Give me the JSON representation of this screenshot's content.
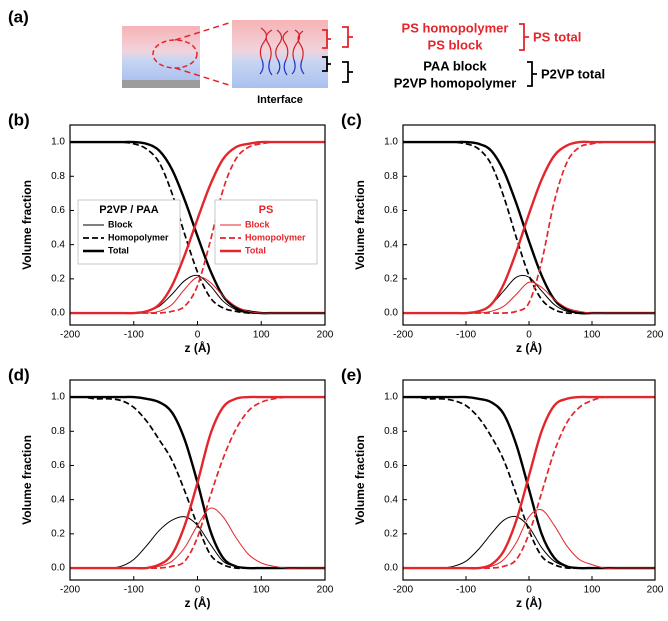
{
  "panel_a": {
    "label": "(a)",
    "labels": [
      "PS homopolymer",
      "PS block",
      "PAA block",
      "P2VP homopolymer"
    ],
    "totals": [
      "PS total",
      "P2VP total"
    ],
    "caption": "Interface"
  },
  "chart_data": [
    {
      "type": "line",
      "panel": "(b)",
      "xlabel": "z  (Å)",
      "ylabel": "Volume fraction",
      "legend_titles": [
        "P2VP / PAA",
        "PS"
      ],
      "x": [
        -200,
        -180,
        -160,
        -140,
        -120,
        -100,
        -80,
        -60,
        -40,
        -20,
        0,
        20,
        40,
        60,
        80,
        100,
        120,
        140,
        160,
        180,
        200
      ],
      "xlim": [
        -200,
        200
      ],
      "xticks": [
        -200,
        -100,
        0,
        100,
        200
      ],
      "ylim": [
        -0.07,
        1.1
      ],
      "yticks": [
        {
          "value": 0,
          "label": "0.0"
        },
        0.2,
        0.4,
        0.6,
        0.8,
        {
          "value": 1,
          "label": "1.0"
        }
      ],
      "series": [
        {
          "name": "Block",
          "color": "#000000",
          "line": "thin",
          "values": [
            0,
            0,
            0,
            0,
            0,
            0,
            0.01,
            0.04,
            0.11,
            0.19,
            0.22,
            0.16,
            0.07,
            0.02,
            0,
            0,
            0,
            0,
            0,
            0,
            0
          ]
        },
        {
          "name": "Homopolymer",
          "color": "#000000",
          "line": "dashed",
          "values": [
            1,
            1,
            1,
            1,
            1,
            0.99,
            0.96,
            0.88,
            0.7,
            0.46,
            0.24,
            0.09,
            0.03,
            0.01,
            0,
            0,
            0,
            0,
            0,
            0,
            0
          ]
        },
        {
          "name": "Total",
          "color": "#000000",
          "line": "thick",
          "values": [
            1,
            1,
            1,
            1,
            1,
            1,
            0.99,
            0.95,
            0.84,
            0.66,
            0.45,
            0.25,
            0.1,
            0.03,
            0.01,
            0,
            0,
            0,
            0,
            0,
            0
          ]
        },
        {
          "name": "Block",
          "color": "#e3262b",
          "line": "thin",
          "values": [
            0,
            0,
            0,
            0,
            0,
            0,
            0,
            0.01,
            0.05,
            0.14,
            0.21,
            0.18,
            0.1,
            0.04,
            0.01,
            0,
            0,
            0,
            0,
            0,
            0
          ]
        },
        {
          "name": "Homopolymer",
          "color": "#e3262b",
          "line": "dashed",
          "values": [
            0,
            0,
            0,
            0,
            0,
            0,
            0,
            0,
            0.01,
            0.04,
            0.16,
            0.42,
            0.72,
            0.9,
            0.97,
            0.99,
            1,
            1,
            1,
            1,
            1
          ]
        },
        {
          "name": "Total",
          "color": "#e3262b",
          "line": "thick",
          "values": [
            0,
            0,
            0,
            0,
            0,
            0,
            0.01,
            0.05,
            0.16,
            0.34,
            0.55,
            0.75,
            0.9,
            0.97,
            0.99,
            1,
            1,
            1,
            1,
            1,
            1
          ]
        }
      ]
    },
    {
      "type": "line",
      "panel": "(c)",
      "xlabel": "z  (Å)",
      "ylabel": "Volume fraction",
      "x": [
        -200,
        -180,
        -160,
        -140,
        -120,
        -100,
        -80,
        -60,
        -40,
        -20,
        0,
        20,
        40,
        60,
        80,
        100,
        120,
        140,
        160,
        180,
        200
      ],
      "xlim": [
        -200,
        200
      ],
      "xticks": [
        -200,
        -100,
        0,
        100,
        200
      ],
      "ylim": [
        -0.07,
        1.1
      ],
      "yticks": [
        {
          "value": 0,
          "label": "0.0"
        },
        0.2,
        0.4,
        0.6,
        0.8,
        {
          "value": 1,
          "label": "1.0"
        }
      ],
      "series": [
        {
          "color": "#000000",
          "line": "thin",
          "values": [
            0,
            0,
            0,
            0,
            0,
            0,
            0.01,
            0.05,
            0.13,
            0.21,
            0.21,
            0.13,
            0.05,
            0.01,
            0,
            0,
            0,
            0,
            0,
            0,
            0
          ]
        },
        {
          "color": "#000000",
          "line": "dashed",
          "values": [
            1,
            1,
            1,
            1,
            1,
            0.99,
            0.96,
            0.87,
            0.68,
            0.44,
            0.22,
            0.08,
            0.02,
            0,
            0,
            0,
            0,
            0,
            0,
            0,
            0
          ]
        },
        {
          "color": "#000000",
          "line": "thick",
          "values": [
            1,
            1,
            1,
            1,
            1,
            1,
            0.99,
            0.95,
            0.83,
            0.64,
            0.42,
            0.22,
            0.08,
            0.02,
            0,
            0,
            0,
            0,
            0,
            0,
            0
          ]
        },
        {
          "color": "#e3262b",
          "line": "thin",
          "values": [
            0,
            0,
            0,
            0,
            0,
            0,
            0,
            0.01,
            0.04,
            0.11,
            0.18,
            0.15,
            0.08,
            0.03,
            0.01,
            0,
            0,
            0,
            0,
            0,
            0
          ]
        },
        {
          "color": "#e3262b",
          "line": "dashed",
          "values": [
            0,
            0,
            0,
            0,
            0,
            0,
            0,
            0,
            0,
            0.01,
            0.06,
            0.3,
            0.65,
            0.88,
            0.97,
            0.99,
            1,
            1,
            1,
            1,
            1
          ]
        },
        {
          "color": "#e3262b",
          "line": "thick",
          "values": [
            0,
            0,
            0,
            0,
            0,
            0,
            0.01,
            0.05,
            0.17,
            0.36,
            0.58,
            0.78,
            0.92,
            0.98,
            1,
            1,
            1,
            1,
            1,
            1,
            1
          ]
        }
      ]
    },
    {
      "type": "line",
      "panel": "(d)",
      "xlabel": "z  (Å)",
      "ylabel": "Volume fraction",
      "x": [
        -200,
        -180,
        -160,
        -140,
        -120,
        -100,
        -80,
        -60,
        -40,
        -20,
        0,
        20,
        40,
        60,
        80,
        100,
        120,
        140,
        160,
        180,
        200
      ],
      "xlim": [
        -200,
        200
      ],
      "xticks": [
        -200,
        -100,
        0,
        100,
        200
      ],
      "ylim": [
        -0.07,
        1.1
      ],
      "yticks": [
        {
          "value": 0,
          "label": "0.0"
        },
        0.2,
        0.4,
        0.6,
        0.8,
        {
          "value": 1,
          "label": "1.0"
        }
      ],
      "series": [
        {
          "color": "#000000",
          "line": "thin",
          "values": [
            0,
            0,
            0,
            0,
            0.01,
            0.05,
            0.13,
            0.22,
            0.28,
            0.3,
            0.25,
            0.14,
            0.04,
            0.01,
            0,
            0,
            0,
            0,
            0,
            0,
            0
          ]
        },
        {
          "color": "#000000",
          "line": "dashed",
          "values": [
            1,
            1,
            0.99,
            0.99,
            0.98,
            0.94,
            0.86,
            0.75,
            0.63,
            0.45,
            0.25,
            0.08,
            0.02,
            0,
            0,
            0,
            0,
            0,
            0,
            0,
            0
          ]
        },
        {
          "color": "#000000",
          "line": "thick",
          "values": [
            1,
            1,
            1,
            1,
            1,
            1,
            0.99,
            0.97,
            0.91,
            0.75,
            0.5,
            0.22,
            0.06,
            0.01,
            0,
            0,
            0,
            0,
            0,
            0,
            0
          ]
        },
        {
          "color": "#e3262b",
          "line": "thin",
          "values": [
            0,
            0,
            0,
            0,
            0,
            0,
            0,
            0.01,
            0.04,
            0.12,
            0.25,
            0.35,
            0.3,
            0.18,
            0.08,
            0.03,
            0.01,
            0,
            0,
            0,
            0
          ]
        },
        {
          "color": "#e3262b",
          "line": "dashed",
          "values": [
            0,
            0,
            0,
            0,
            0,
            0,
            0,
            0,
            0.01,
            0.04,
            0.18,
            0.42,
            0.64,
            0.81,
            0.92,
            0.97,
            0.99,
            1,
            1,
            1,
            1
          ]
        },
        {
          "color": "#e3262b",
          "line": "thick",
          "values": [
            0,
            0,
            0,
            0,
            0,
            0,
            0,
            0.02,
            0.08,
            0.25,
            0.5,
            0.78,
            0.94,
            0.99,
            1,
            1,
            1,
            1,
            1,
            1,
            1
          ]
        }
      ]
    },
    {
      "type": "line",
      "panel": "(e)",
      "xlabel": "z  (Å)",
      "ylabel": "Volume fraction",
      "x": [
        -200,
        -180,
        -160,
        -140,
        -120,
        -100,
        -80,
        -60,
        -40,
        -20,
        0,
        20,
        40,
        60,
        80,
        100,
        120,
        140,
        160,
        180,
        200
      ],
      "xlim": [
        -200,
        200
      ],
      "xticks": [
        -200,
        -100,
        0,
        100,
        200
      ],
      "ylim": [
        -0.07,
        1.1
      ],
      "yticks": [
        {
          "value": 0,
          "label": "0.0"
        },
        0.2,
        0.4,
        0.6,
        0.8,
        {
          "value": 1,
          "label": "1.0"
        }
      ],
      "series": [
        {
          "color": "#000000",
          "line": "thin",
          "values": [
            0,
            0,
            0,
            0,
            0.01,
            0.04,
            0.11,
            0.2,
            0.28,
            0.3,
            0.24,
            0.12,
            0.04,
            0.01,
            0,
            0,
            0,
            0,
            0,
            0,
            0
          ]
        },
        {
          "color": "#000000",
          "line": "dashed",
          "values": [
            1,
            1,
            0.99,
            0.99,
            0.98,
            0.95,
            0.88,
            0.77,
            0.63,
            0.43,
            0.22,
            0.07,
            0.02,
            0,
            0,
            0,
            0,
            0,
            0,
            0,
            0
          ]
        },
        {
          "color": "#000000",
          "line": "thick",
          "values": [
            1,
            1,
            1,
            1,
            1,
            1,
            0.99,
            0.97,
            0.9,
            0.72,
            0.46,
            0.2,
            0.06,
            0.01,
            0,
            0,
            0,
            0,
            0,
            0,
            0
          ]
        },
        {
          "color": "#e3262b",
          "line": "thin",
          "values": [
            0,
            0,
            0,
            0,
            0,
            0,
            0,
            0.01,
            0.05,
            0.15,
            0.3,
            0.34,
            0.25,
            0.13,
            0.05,
            0.02,
            0,
            0,
            0,
            0,
            0
          ]
        },
        {
          "color": "#e3262b",
          "line": "dashed",
          "values": [
            0,
            0,
            0,
            0,
            0,
            0,
            0,
            0,
            0.01,
            0.05,
            0.2,
            0.44,
            0.68,
            0.85,
            0.94,
            0.98,
            1,
            1,
            1,
            1,
            1
          ]
        },
        {
          "color": "#e3262b",
          "line": "thick",
          "values": [
            0,
            0,
            0,
            0,
            0,
            0,
            0,
            0.02,
            0.1,
            0.28,
            0.54,
            0.8,
            0.95,
            0.99,
            1,
            1,
            1,
            1,
            1,
            1,
            1
          ]
        }
      ]
    }
  ]
}
